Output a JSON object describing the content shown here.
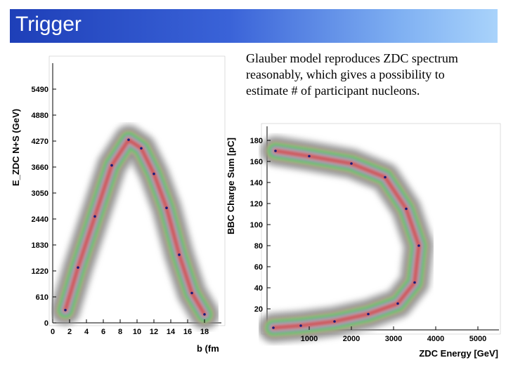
{
  "slide": {
    "title": "Trigger",
    "caption": "Glauber model reproduces ZDC spectrum reasonably, which gives a possibility to estimate # of participant nucleons."
  },
  "colors": {
    "title_bar_start": "#1e3fb8",
    "title_bar_end": "#a9d3fb"
  },
  "chart_data": [
    {
      "type": "heatmap",
      "title": "",
      "xlabel": "b (fm",
      "ylabel": "E_ZDC N+S (GeV)",
      "x_ticks": [
        "0",
        "2",
        "4",
        "6",
        "8",
        "10",
        "12",
        "14",
        "16",
        "18"
      ],
      "y_ticks": [
        "0",
        "610",
        "1220",
        "1830",
        "2440",
        "3050",
        "3660",
        "4270",
        "4880",
        "5490"
      ],
      "xlim": [
        0,
        20
      ],
      "ylim": [
        0,
        6100
      ],
      "ridge": {
        "x": [
          1.5,
          3,
          5,
          7,
          9,
          10.5,
          12,
          13.5,
          15,
          16.5,
          18
        ],
        "y": [
          300,
          1300,
          2500,
          3700,
          4300,
          4100,
          3500,
          2700,
          1600,
          700,
          200
        ]
      }
    },
    {
      "type": "heatmap",
      "title": "",
      "xlabel": "ZDC Energy [GeV]",
      "ylabel": "BBC Charge Sum [pC]",
      "x_ticks": [
        "1000",
        "2000",
        "3000",
        "4000",
        "5000"
      ],
      "y_ticks": [
        "20",
        "40",
        "60",
        "80",
        "100",
        "120",
        "140",
        "160",
        "180"
      ],
      "xlim": [
        0,
        5500
      ],
      "ylim": [
        0,
        190
      ],
      "ridge": {
        "x": [
          200,
          1000,
          2000,
          2800,
          3300,
          3600,
          3500,
          3100,
          2400,
          1600,
          800,
          150
        ],
        "y": [
          170,
          165,
          158,
          145,
          115,
          80,
          45,
          25,
          15,
          8,
          4,
          2
        ]
      }
    }
  ]
}
